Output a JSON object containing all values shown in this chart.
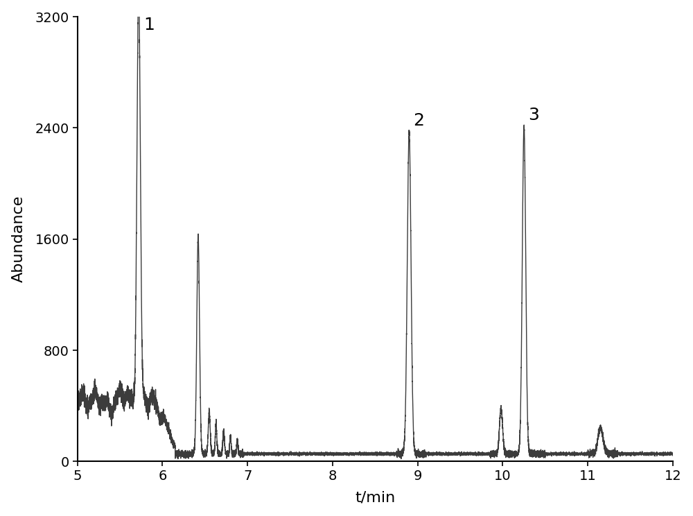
{
  "title": "",
  "xlabel": "t/min",
  "ylabel": "Abundance",
  "xlim": [
    5,
    12
  ],
  "ylim": [
    0,
    3200
  ],
  "yticks": [
    0,
    800,
    1600,
    2400,
    3200
  ],
  "xticks": [
    5,
    6,
    7,
    8,
    9,
    10,
    11,
    12
  ],
  "line_color": "#3c3c3c",
  "line_width": 1.0,
  "background_color": "#ffffff",
  "peak1_time": 5.72,
  "peak1_height": 3060,
  "peak1_label": "1",
  "peak2_time": 8.9,
  "peak2_height": 2370,
  "peak2_label": "2",
  "peak3_time": 10.25,
  "peak3_height": 2410,
  "peak3_label": "3"
}
